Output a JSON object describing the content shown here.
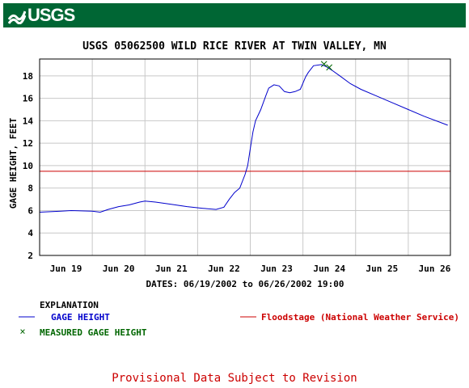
{
  "header": {
    "logo_text": "USGS",
    "color": "#006634"
  },
  "chart_data": {
    "type": "line",
    "title": "USGS 05062500 WILD RICE RIVER AT TWIN VALLEY, MN",
    "ylabel": "GAGE HEIGHT, FEET",
    "xlabel": "DATES: 06/19/2002 to 06/26/2002 19:00",
    "ylim": [
      2,
      19.5
    ],
    "yticks": [
      2,
      4,
      6,
      8,
      10,
      12,
      14,
      16,
      18
    ],
    "xlim": [
      0,
      7.8
    ],
    "xtick_positions": [
      0.5,
      1.5,
      2.5,
      3.5,
      4.5,
      5.5,
      6.5,
      7.5
    ],
    "xtick_labels": [
      "Jun 19",
      "Jun 20",
      "Jun 21",
      "Jun 22",
      "Jun 23",
      "Jun 24",
      "Jun 25",
      "Jun 26"
    ],
    "grid": true,
    "series": [
      {
        "name": "GAGE HEIGHT",
        "color": "#0000cc",
        "x": [
          0,
          0.4,
          0.6,
          1.0,
          1.15,
          1.3,
          1.5,
          1.7,
          1.9,
          2.0,
          2.2,
          2.5,
          2.8,
          3.1,
          3.35,
          3.5,
          3.6,
          3.7,
          3.8,
          3.9,
          3.95,
          4.0,
          4.05,
          4.1,
          4.15,
          4.2,
          4.3,
          4.35,
          4.45,
          4.55,
          4.65,
          4.75,
          4.85,
          4.95,
          5.05,
          5.1,
          5.2,
          5.35,
          5.45,
          5.55,
          5.7,
          5.9,
          6.1,
          6.4,
          6.7,
          7.0,
          7.3,
          7.75
        ],
        "values": [
          5.85,
          5.95,
          6.0,
          5.95,
          5.85,
          6.1,
          6.35,
          6.5,
          6.75,
          6.85,
          6.75,
          6.55,
          6.35,
          6.2,
          6.1,
          6.3,
          7.0,
          7.6,
          8.0,
          9.2,
          10.0,
          11.5,
          13.0,
          14.0,
          14.5,
          15.0,
          16.3,
          16.9,
          17.2,
          17.1,
          16.6,
          16.5,
          16.6,
          16.8,
          17.9,
          18.3,
          18.9,
          19.0,
          18.8,
          18.5,
          18.0,
          17.3,
          16.8,
          16.2,
          15.6,
          15.0,
          14.4,
          13.6
        ]
      },
      {
        "name": "MEASURED GAGE HEIGHT",
        "color": "#006600",
        "x": [
          5.4,
          5.5
        ],
        "values": [
          19.05,
          18.75
        ]
      }
    ],
    "reference_lines": [
      {
        "name": "Floodstage (National Weather Service)",
        "value": 9.5,
        "color": "#cc0000"
      }
    ],
    "legend": {
      "title": "EXPLANATION",
      "entries": [
        {
          "label": "GAGE HEIGHT",
          "color": "#0000cc",
          "symbol": "line"
        },
        {
          "label": "MEASURED GAGE HEIGHT",
          "color": "#006600",
          "symbol": "x"
        },
        {
          "label": "Floodstage (National Weather Service)",
          "color": "#cc0000",
          "symbol": "line"
        }
      ]
    }
  },
  "footer": {
    "provisional": "Provisional Data Subject to Revision"
  }
}
